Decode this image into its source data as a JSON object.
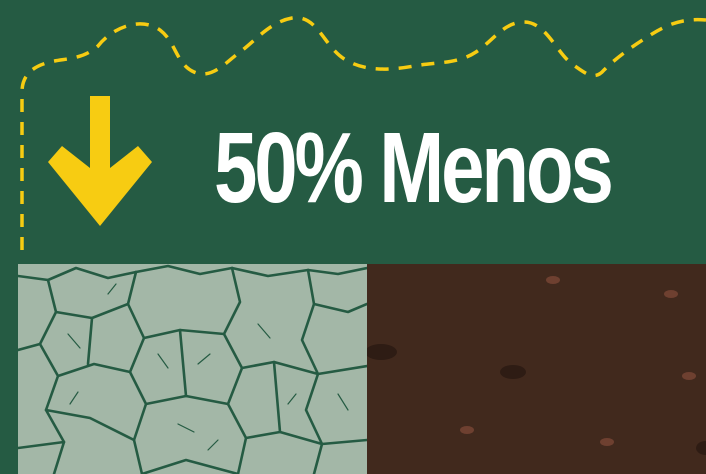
{
  "headline": {
    "text": "50% Menos"
  },
  "colors": {
    "background": "#255b43",
    "accent": "#f7cc12",
    "headline_text": "#ffffff",
    "cracked_ground": "#a3b7a7",
    "crack_lines": "#255b43",
    "soil": "#41291d"
  },
  "icons": {
    "arrow": "down-arrow-icon",
    "path": "dashed-flight-path"
  },
  "panels": [
    {
      "name": "cracked-dry-ground"
    },
    {
      "name": "moist-soil"
    }
  ]
}
